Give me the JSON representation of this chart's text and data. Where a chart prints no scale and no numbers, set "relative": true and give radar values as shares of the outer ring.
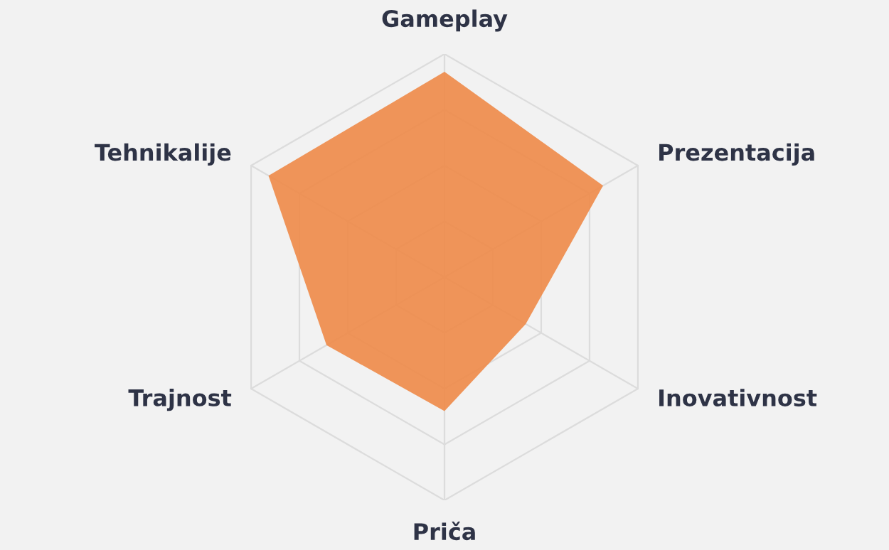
{
  "chart_data": {
    "type": "radar",
    "relative": true,
    "grid": true,
    "categories": [
      "Gameplay",
      "Prezentacija",
      "Inovativnost",
      "Priča",
      "Trajnost",
      "Tehnikalije"
    ],
    "series": [
      {
        "color": "#ee8a48",
        "values": [
          0.92,
          0.82,
          0.42,
          0.6,
          0.61,
          0.91
        ]
      }
    ]
  }
}
